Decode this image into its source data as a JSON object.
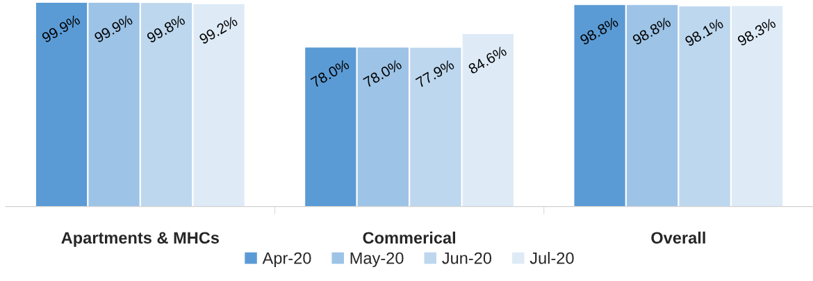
{
  "chart_data": {
    "type": "bar",
    "categories": [
      "Apartments & MHCs",
      "Commerical",
      "Overall"
    ],
    "series": [
      {
        "name": "Apr-20",
        "color": "#5b9bd5",
        "values": [
          99.9,
          78.0,
          98.8
        ],
        "value_labels": [
          "99.9%",
          "78.0%",
          "98.8%"
        ]
      },
      {
        "name": "May-20",
        "color": "#9dc3e6",
        "values": [
          99.9,
          78.0,
          98.8
        ],
        "value_labels": [
          "99.9%",
          "78.0%",
          "98.8%"
        ]
      },
      {
        "name": "Jun-20",
        "color": "#bdd7ee",
        "values": [
          99.8,
          77.9,
          98.1
        ],
        "value_labels": [
          "99.8%",
          "77.9%",
          "98.1%"
        ]
      },
      {
        "name": "Jul-20",
        "color": "#deebf7",
        "values": [
          99.2,
          84.6,
          98.3
        ],
        "value_labels": [
          "99.2%",
          "84.6%",
          "98.3%"
        ]
      }
    ],
    "legend": "bottom",
    "grid": false
  }
}
